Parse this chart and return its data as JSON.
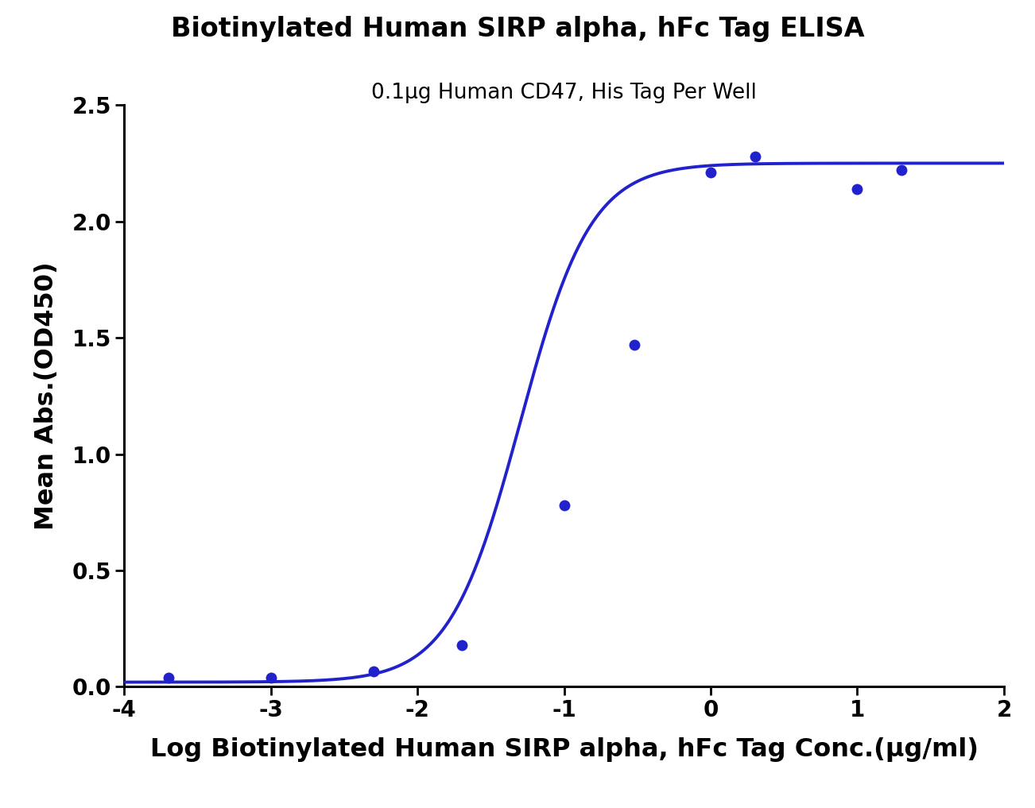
{
  "title": "Biotinylated Human SIRP alpha, hFc Tag ELISA",
  "subtitle": "0.1μg Human CD47, His Tag Per Well",
  "xlabel": "Log Biotinylated Human SIRP alpha, hFc Tag Conc.(μg/ml)",
  "ylabel": "Mean Abs.(OD450)",
  "data_points_x": [
    -3.699,
    -3.0,
    -2.301,
    -1.699,
    -1.0,
    -0.523,
    0.0,
    0.301,
    1.0,
    1.301
  ],
  "data_points_y": [
    0.04,
    0.04,
    0.065,
    0.18,
    0.78,
    1.47,
    2.21,
    2.28,
    2.14,
    2.22
  ],
  "xlim": [
    -4,
    2
  ],
  "ylim": [
    0.0,
    2.5
  ],
  "xticks": [
    -4,
    -3,
    -2,
    -1,
    0,
    1,
    2
  ],
  "yticks": [
    0.0,
    0.5,
    1.0,
    1.5,
    2.0,
    2.5
  ],
  "curve_color": "#2222cc",
  "dot_color": "#2222cc",
  "line_width": 2.8,
  "dot_size": 100,
  "title_fontsize": 24,
  "subtitle_fontsize": 19,
  "axis_label_fontsize": 23,
  "tick_fontsize": 20,
  "background_color": "#ffffff",
  "spine_linewidth": 2.2,
  "ec50_init": -1.3,
  "hillslope_init": 1.8,
  "bottom_init": 0.02,
  "top_init": 2.25
}
